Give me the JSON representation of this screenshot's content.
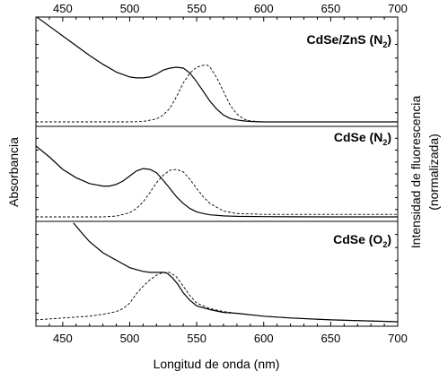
{
  "chart_data": {
    "type": "line",
    "x_range": [
      430,
      700
    ],
    "x_ticks": [
      450,
      500,
      550,
      600,
      650,
      700
    ],
    "xlabel": "Longitud de onda (nm)",
    "ylabel_left": "Absorbancia",
    "ylabel_right_line1": "Intensidad de fluorescencia",
    "ylabel_right_line2": "(normalizada)",
    "panels": [
      {
        "label_main": "CdSe/ZnS (N",
        "label_sub": "2",
        "label_close": ")",
        "series": [
          {
            "style": "solid",
            "y_range": [
              0,
              1
            ],
            "x": [
              430,
              440,
              450,
              460,
              470,
              480,
              490,
              500,
              505,
              510,
              515,
              520,
              525,
              530,
              535,
              540,
              545,
              550,
              555,
              560,
              565,
              570,
              575,
              580,
              585,
              590,
              600,
              620,
              650,
              700
            ],
            "y": [
              1.08,
              0.98,
              0.88,
              0.78,
              0.68,
              0.59,
              0.51,
              0.46,
              0.45,
              0.45,
              0.46,
              0.49,
              0.53,
              0.55,
              0.56,
              0.55,
              0.5,
              0.41,
              0.31,
              0.21,
              0.13,
              0.07,
              0.035,
              0.02,
              0.01,
              0.005,
              0.0,
              0.0,
              0.0,
              0.0
            ]
          },
          {
            "style": "dashed",
            "y_range": [
              0,
              1
            ],
            "x": [
              430,
              500,
              510,
              520,
              525,
              530,
              535,
              540,
              545,
              550,
              555,
              558,
              560,
              565,
              570,
              575,
              580,
              585,
              590,
              600,
              620,
              650,
              700
            ],
            "y": [
              0.0,
              0.0,
              0.005,
              0.03,
              0.07,
              0.14,
              0.26,
              0.4,
              0.5,
              0.56,
              0.58,
              0.58,
              0.56,
              0.45,
              0.31,
              0.17,
              0.08,
              0.03,
              0.01,
              0.0,
              0.0,
              0.0,
              0.0
            ]
          }
        ]
      },
      {
        "label_main": "CdSe (N",
        "label_sub": "2",
        "label_close": ")",
        "series": [
          {
            "style": "solid",
            "y_range": [
              0,
              1
            ],
            "x": [
              430,
              440,
              450,
              460,
              470,
              480,
              485,
              490,
              495,
              500,
              505,
              510,
              515,
              520,
              525,
              530,
              535,
              540,
              545,
              550,
              555,
              560,
              570,
              580,
              600,
              620,
              650,
              700
            ],
            "y": [
              0.85,
              0.72,
              0.57,
              0.47,
              0.4,
              0.37,
              0.37,
              0.39,
              0.43,
              0.49,
              0.55,
              0.58,
              0.57,
              0.53,
              0.44,
              0.34,
              0.24,
              0.16,
              0.1,
              0.06,
              0.04,
              0.025,
              0.012,
              0.006,
              0.003,
              0.001,
              0.0,
              0.0
            ]
          },
          {
            "style": "dashed",
            "y_range": [
              0,
              1
            ],
            "x": [
              430,
              480,
              490,
              500,
              505,
              510,
              515,
              520,
              525,
              530,
              535,
              540,
              545,
              550,
              555,
              560,
              570,
              580,
              590,
              600,
              620,
              650,
              700
            ],
            "y": [
              0.0,
              0.0,
              0.01,
              0.05,
              0.1,
              0.18,
              0.29,
              0.41,
              0.5,
              0.56,
              0.57,
              0.54,
              0.45,
              0.34,
              0.24,
              0.16,
              0.07,
              0.04,
              0.035,
              0.03,
              0.03,
              0.03,
              0.03
            ]
          }
        ]
      },
      {
        "label_main": "CdSe (O",
        "label_sub": "2",
        "label_close": ")",
        "series": [
          {
            "style": "solid",
            "y_range": [
              0,
              1
            ],
            "x": [
              458,
              465,
              470,
              480,
              490,
              500,
              505,
              510,
              515,
              520,
              525,
              528,
              532,
              536,
              540,
              545,
              550,
              560,
              570,
              580,
              600,
              620,
              650,
              700
            ],
            "y": [
              1.06,
              0.94,
              0.86,
              0.74,
              0.66,
              0.58,
              0.56,
              0.54,
              0.53,
              0.53,
              0.53,
              0.52,
              0.47,
              0.4,
              0.31,
              0.23,
              0.17,
              0.13,
              0.1,
              0.09,
              0.06,
              0.04,
              0.02,
              0.0
            ]
          },
          {
            "style": "dashed",
            "y_range": [
              0,
              1
            ],
            "x": [
              430,
              450,
              470,
              480,
              490,
              495,
              500,
              505,
              510,
              515,
              520,
              525,
              530,
              535,
              540,
              545,
              550,
              560,
              570,
              580,
              600,
              620,
              650,
              700
            ],
            "y": [
              0.02,
              0.04,
              0.06,
              0.08,
              0.11,
              0.14,
              0.2,
              0.3,
              0.38,
              0.45,
              0.5,
              0.53,
              0.53,
              0.48,
              0.38,
              0.28,
              0.2,
              0.14,
              0.11,
              0.09,
              0.06,
              0.04,
              0.02,
              0.0
            ]
          }
        ]
      }
    ]
  }
}
